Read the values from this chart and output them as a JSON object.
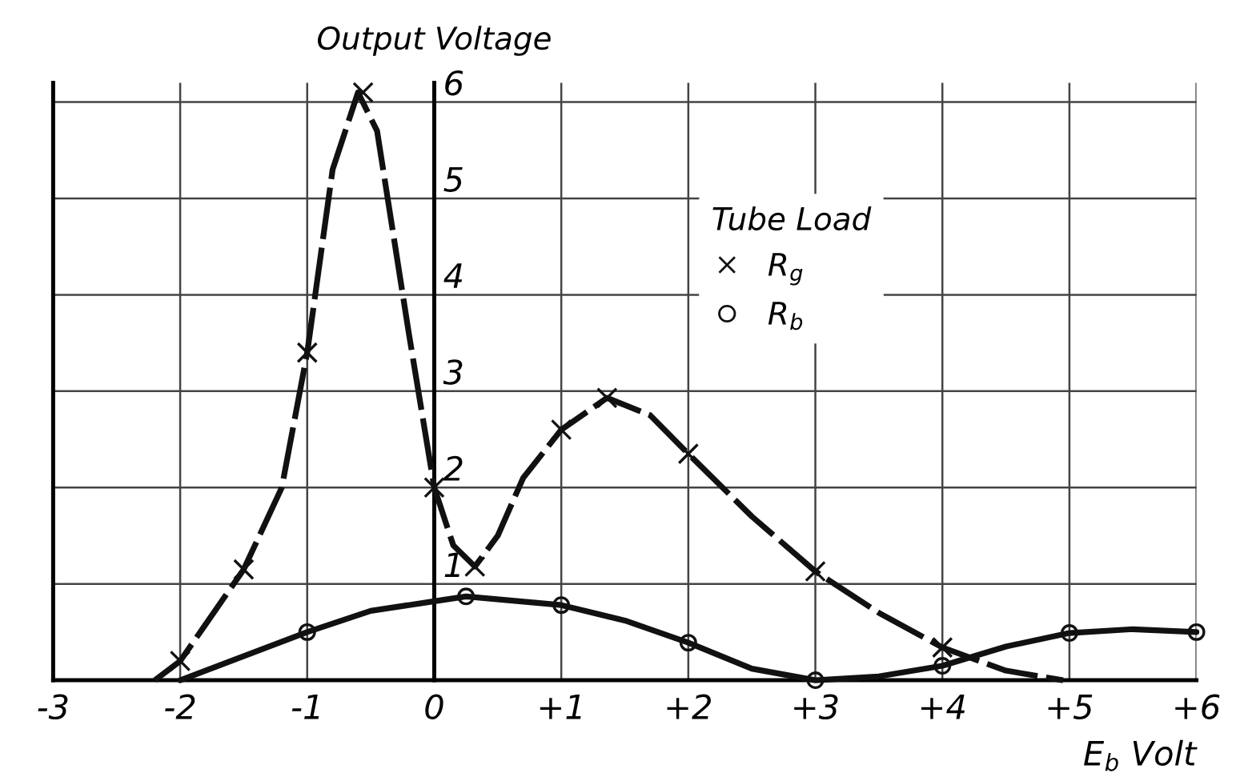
{
  "chart_data": {
    "type": "line",
    "title": "Output Voltage",
    "xlabel": "E$_{b}$ Volt",
    "legend_title": "Tube Load",
    "xlim": [
      -3,
      6
    ],
    "ylim": [
      0,
      6.2
    ],
    "xticks": [
      -3,
      -2,
      -1,
      0,
      {
        "value": 1,
        "label": "+1"
      },
      {
        "value": 2,
        "label": "+2"
      },
      {
        "value": 3,
        "label": "+3"
      },
      {
        "value": 4,
        "label": "+4"
      },
      {
        "value": 5,
        "label": "+5"
      },
      {
        "value": 6,
        "label": "+6"
      }
    ],
    "yticks": [
      1,
      2,
      3,
      4,
      5,
      6
    ],
    "grid": true,
    "legend": "top right",
    "series": [
      {
        "type": "line",
        "color": "#111111",
        "line_style": "dashed",
        "marker": "none",
        "x": [
          -2.2,
          -2,
          -1.5,
          -1.2,
          -1,
          -0.8,
          -0.6,
          -0.45,
          -0.2,
          0,
          0.15,
          0.32,
          0.5,
          0.7,
          1,
          1.36,
          1.7,
          2,
          2.5,
          3,
          3.5,
          4,
          4.5,
          4.95
        ],
        "values": [
          0,
          0.2,
          1.15,
          2.0,
          3.4,
          5.3,
          6.1,
          5.7,
          3.6,
          2.0,
          1.4,
          1.18,
          1.5,
          2.1,
          2.6,
          2.93,
          2.75,
          2.35,
          1.7,
          1.13,
          0.7,
          0.34,
          0.1,
          0
        ]
      },
      {
        "type": "line",
        "color": "#111111",
        "line_style": "solid",
        "marker": "none",
        "x": [
          -2,
          -1,
          -0.5,
          0,
          0.25,
          1,
          1.5,
          2,
          2.5,
          3,
          3.5,
          4,
          4.5,
          5,
          5.5,
          6
        ],
        "values": [
          0,
          0.5,
          0.72,
          0.82,
          0.87,
          0.78,
          0.62,
          0.39,
          0.12,
          0,
          0.04,
          0.15,
          0.35,
          0.49,
          0.53,
          0.5
        ]
      },
      {
        "type": "scatter",
        "name": "R$_{g}$",
        "color": "#111111",
        "marker": "cross",
        "x": [
          -2,
          -1.5,
          -1,
          -0.56,
          0,
          0.32,
          1,
          1.36,
          2,
          3,
          4
        ],
        "values": [
          0.2,
          1.15,
          3.4,
          6.1,
          2.0,
          1.18,
          2.6,
          2.93,
          2.35,
          1.13,
          0.34
        ]
      },
      {
        "type": "scatter",
        "name": "R$_{b}$",
        "color": "#111111",
        "marker": "circle",
        "x": [
          -1,
          0.25,
          1,
          2,
          3,
          4,
          5,
          6
        ],
        "values": [
          0.5,
          0.87,
          0.78,
          0.39,
          0,
          0.15,
          0.49,
          0.5
        ]
      }
    ]
  }
}
